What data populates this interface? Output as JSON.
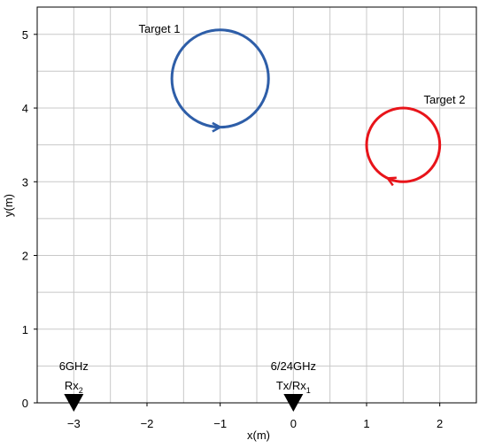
{
  "chart_data": {
    "type": "trajectory",
    "xlabel": "x(m)",
    "ylabel": "y(m)",
    "xlim": [
      -3.5,
      2.5
    ],
    "ylim": [
      0,
      5.37
    ],
    "xticks": [
      {
        "value": -3,
        "label": "−3"
      },
      {
        "value": -2,
        "label": "−2"
      },
      {
        "value": -1,
        "label": "−1"
      },
      0,
      1,
      2
    ],
    "yticks": [
      0,
      1,
      2,
      3,
      4,
      5
    ],
    "grid": true,
    "grid_step": 0.5,
    "targets": [
      {
        "name": "Target 1",
        "color": "#2e5ea8",
        "center": [
          -1,
          4.4
        ],
        "radius": 0.66,
        "direction": "counterclockwise"
      },
      {
        "name": "Target 2",
        "color": "#e8141a",
        "center": [
          1.5,
          3.5
        ],
        "radius": 0.5,
        "direction": "clockwise"
      }
    ],
    "antennas": [
      {
        "x": -3,
        "y": 0,
        "band": "6GHz",
        "label": "Rx",
        "sub": "2"
      },
      {
        "x": 0,
        "y": 0,
        "band": "6/24GHz",
        "label": "Tx/Rx",
        "sub": "1"
      }
    ]
  }
}
